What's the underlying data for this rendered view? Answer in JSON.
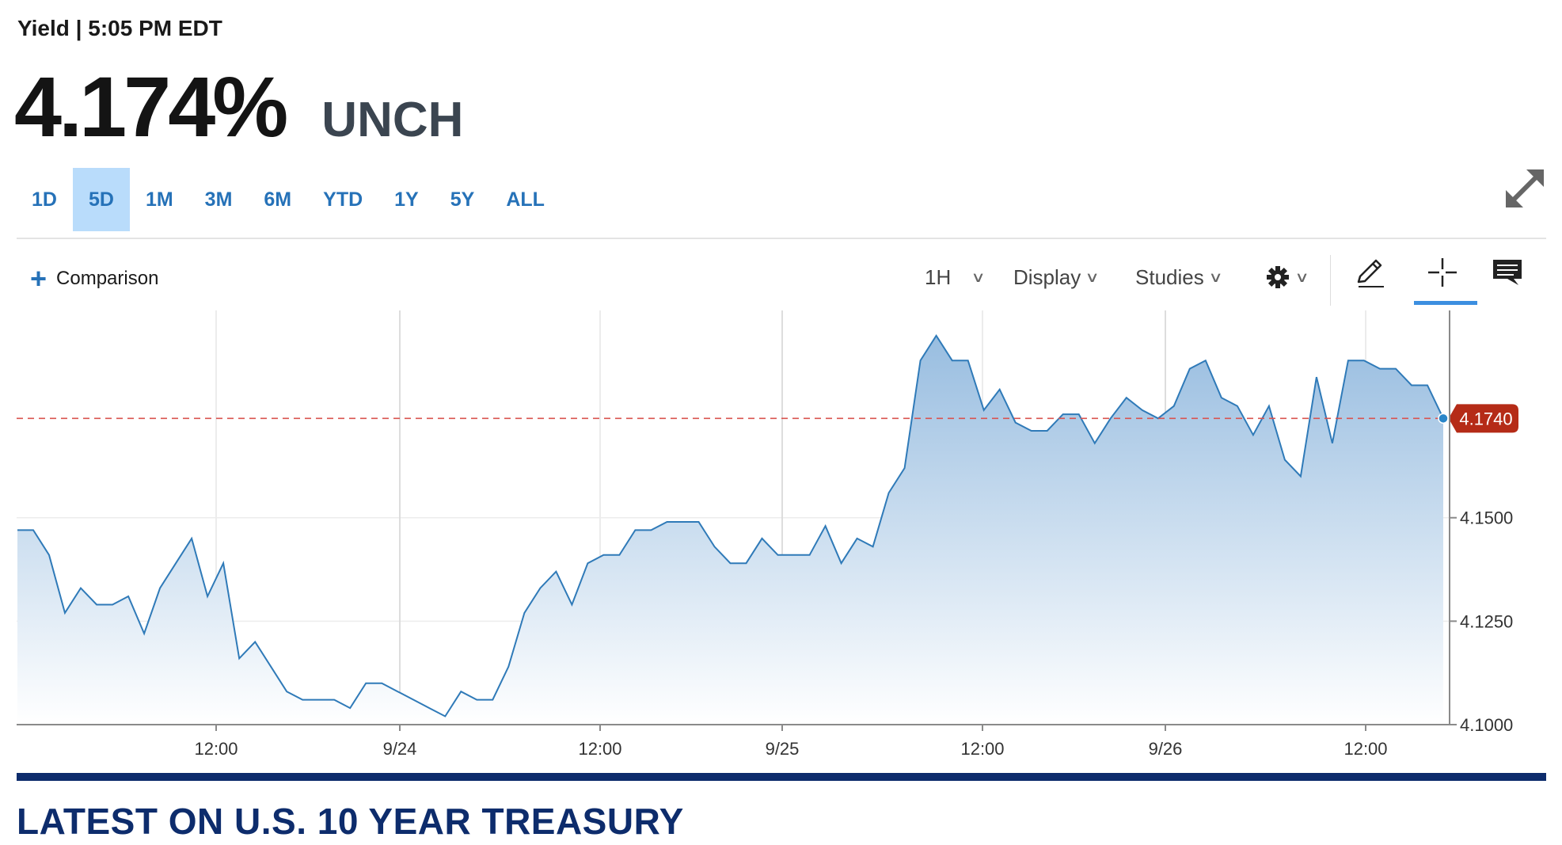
{
  "header": {
    "title": "Yield | 5:05 PM EDT",
    "price": "4.174%",
    "change": "UNCH"
  },
  "ranges": {
    "tabs": [
      "1D",
      "5D",
      "1M",
      "3M",
      "6M",
      "YTD",
      "1Y",
      "5Y",
      "ALL"
    ],
    "active": "5D"
  },
  "toolbar": {
    "comparison": "Comparison",
    "interval": "1H",
    "display": "Display",
    "studies": "Studies"
  },
  "icons": {
    "expand": "expand-arrows-icon",
    "settings": "gear-icon",
    "draw": "pencil-icon",
    "crosshair": "crosshair-icon",
    "comment": "comment-icon",
    "add": "plus-icon"
  },
  "colors": {
    "line": "#2f7ab8",
    "fill_top": "#98bde0",
    "fill_bottom": "#ffffff",
    "ref_line": "#d9534f",
    "last_badge": "#b52b17",
    "accent": "#2672b8",
    "tab_active_bg": "#b9dcfb",
    "news_color": "#0d2c6c"
  },
  "chart_data": {
    "type": "area",
    "x_tick_labels": [
      "12:00",
      "9/24",
      "12:00",
      "9/25",
      "12:00",
      "9/26",
      "12:00"
    ],
    "y_tick_labels": [
      "4.1500",
      "4.1250",
      "4.1000"
    ],
    "ylim": [
      4.1,
      4.1999
    ],
    "reference_line": 4.174,
    "last_value_label": "4.1740",
    "grid": true,
    "series": [
      {
        "values": [
          4.147,
          4.147,
          4.141,
          4.127,
          4.133,
          4.129,
          4.129,
          4.131,
          4.122,
          4.133,
          4.139,
          4.145,
          4.131,
          4.139,
          4.116,
          4.12,
          4.114,
          4.108,
          4.106,
          4.106,
          4.106,
          4.104,
          4.11,
          4.11,
          4.108,
          4.106,
          4.104,
          4.102,
          4.108,
          4.106,
          4.106,
          4.114,
          4.127,
          4.133,
          4.137,
          4.129,
          4.139,
          4.141,
          4.141,
          4.147,
          4.147,
          4.149,
          4.149,
          4.149,
          4.143,
          4.139,
          4.139,
          4.145,
          4.141,
          4.141,
          4.141,
          4.148,
          4.139,
          4.145,
          4.143,
          4.156,
          4.162,
          4.188,
          4.194,
          4.188,
          4.188,
          4.176,
          4.181,
          4.173,
          4.171,
          4.171,
          4.175,
          4.175,
          4.168,
          4.174,
          4.179,
          4.176,
          4.174,
          4.177,
          4.186,
          4.188,
          4.179,
          4.177,
          4.17,
          4.177,
          4.164,
          4.16,
          4.184,
          4.168,
          4.188,
          4.188,
          4.186,
          4.186,
          4.182,
          4.182,
          4.174
        ]
      }
    ]
  },
  "news": {
    "title": "LATEST ON U.S. 10 YEAR TREASURY"
  }
}
